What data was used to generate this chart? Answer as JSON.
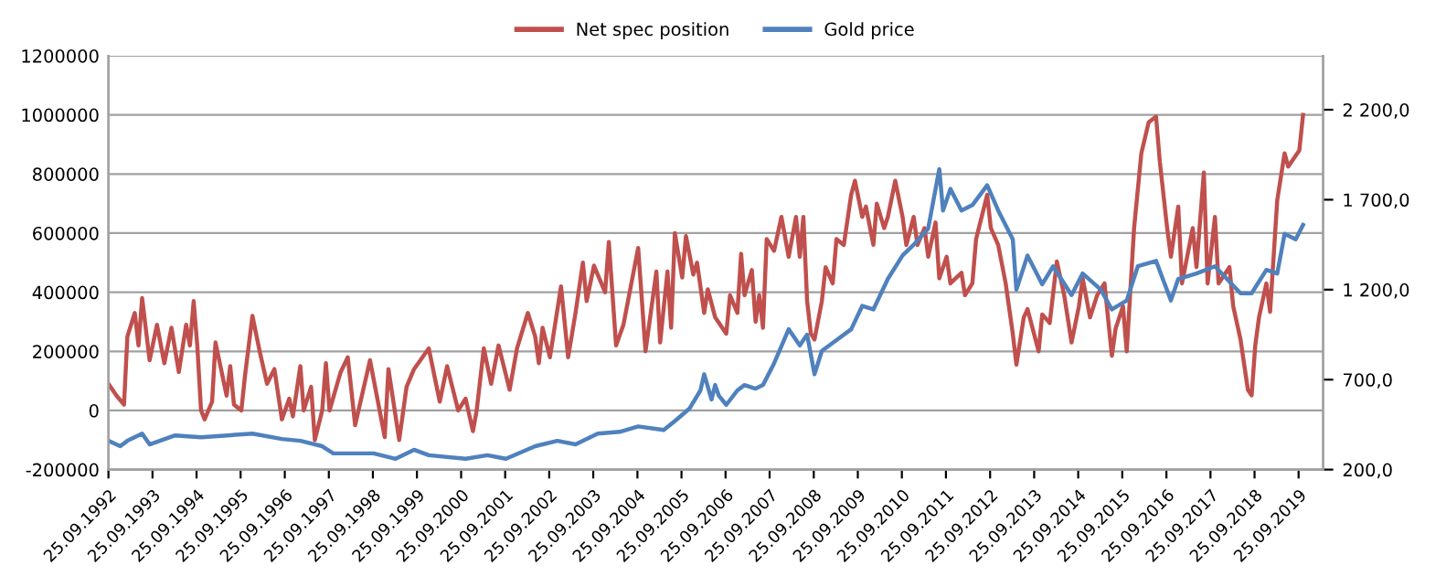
{
  "chart_data": {
    "type": "line",
    "xlim": [
      "1992-09-25",
      "2020-04-15"
    ],
    "xticks": [
      {
        "value": "1992-09-25",
        "label": "25.09.1992"
      },
      {
        "value": "1993-09-25",
        "label": "25.09.1993"
      },
      {
        "value": "1994-09-25",
        "label": "25.09.1994"
      },
      {
        "value": "1995-09-25",
        "label": "25.09.1995"
      },
      {
        "value": "1996-09-25",
        "label": "25.09.1996"
      },
      {
        "value": "1997-09-25",
        "label": "25.09.1997"
      },
      {
        "value": "1998-09-25",
        "label": "25.09.1998"
      },
      {
        "value": "1999-09-25",
        "label": "25.09.1999"
      },
      {
        "value": "2000-09-25",
        "label": "25.09.2000"
      },
      {
        "value": "2001-09-25",
        "label": "25.09.2001"
      },
      {
        "value": "2002-09-25",
        "label": "25.09.2002"
      },
      {
        "value": "2003-09-25",
        "label": "25.09.2003"
      },
      {
        "value": "2004-09-25",
        "label": "25.09.2004"
      },
      {
        "value": "2005-09-25",
        "label": "25.09.2005"
      },
      {
        "value": "2006-09-25",
        "label": "25.09.2006"
      },
      {
        "value": "2007-09-25",
        "label": "25.09.2007"
      },
      {
        "value": "2008-09-25",
        "label": "25.09.2008"
      },
      {
        "value": "2009-09-25",
        "label": "25.09.2009"
      },
      {
        "value": "2010-09-25",
        "label": "25.09.2010"
      },
      {
        "value": "2011-09-25",
        "label": "25.09.2011"
      },
      {
        "value": "2012-09-25",
        "label": "25.09.2012"
      },
      {
        "value": "2013-09-25",
        "label": "25.09.2013"
      },
      {
        "value": "2014-09-25",
        "label": "25.09.2014"
      },
      {
        "value": "2015-09-25",
        "label": "25.09.2015"
      },
      {
        "value": "2016-09-25",
        "label": "25.09.2016"
      },
      {
        "value": "2017-09-25",
        "label": "25.09.2017"
      },
      {
        "value": "2018-09-25",
        "label": "25.09.2018"
      },
      {
        "value": "2019-09-25",
        "label": "25.09.2019"
      }
    ],
    "ylim": [
      -200000,
      1200000
    ],
    "yticks": [
      -200000,
      0,
      200000,
      400000,
      600000,
      800000,
      1000000,
      1200000
    ],
    "y2lim": [
      200,
      2500
    ],
    "y2ticks": [
      {
        "value": 200,
        "label": "200,0"
      },
      {
        "value": 700,
        "label": "700,0"
      },
      {
        "value": 1200,
        "label": "1 200,0"
      },
      {
        "value": 1700,
        "label": "1 700,0"
      },
      {
        "value": 2200,
        "label": "2 200,0"
      }
    ],
    "grid": "y",
    "legend": "top",
    "marker": "none",
    "line_style": "solid",
    "series": [
      {
        "name": "Net spec position",
        "color": "#c0504d",
        "x": [
          "1992-09-25",
          "1992-12",
          "1993-02",
          "1993-03",
          "1993-05",
          "1993-06",
          "1993-07",
          "1993-09",
          "1993-11",
          "1994-01",
          "1994-03",
          "1994-05",
          "1994-07",
          "1994-08",
          "1994-09",
          "1994-10",
          "1994-11",
          "1994-12",
          "1995-02",
          "1995-03",
          "1995-06",
          "1995-07",
          "1995-08",
          "1995-10",
          "1995-11",
          "1996-01",
          "1996-03",
          "1996-05",
          "1996-07",
          "1996-09",
          "1996-11",
          "1996-12",
          "1997-02",
          "1997-03",
          "1997-05",
          "1997-06",
          "1997-08",
          "1997-09",
          "1997-10",
          "1998-01",
          "1998-03",
          "1998-05",
          "1998-09",
          "1999-01",
          "1999-02",
          "1999-05",
          "1999-07",
          "1999-09",
          "2000-01",
          "2000-04",
          "2000-06",
          "2000-09",
          "2000-11",
          "2001-01",
          "2001-02",
          "2001-04",
          "2001-06",
          "2001-08",
          "2001-11",
          "2002-01",
          "2002-04",
          "2002-06",
          "2002-07",
          "2002-08",
          "2002-10",
          "2003-01",
          "2003-03",
          "2003-05",
          "2003-07",
          "2003-08",
          "2003-10",
          "2004-01",
          "2004-02",
          "2004-04",
          "2004-06",
          "2004-10",
          "2004-12",
          "2005-03",
          "2005-04",
          "2005-06",
          "2005-07",
          "2005-08",
          "2005-10",
          "2005-11",
          "2006-01",
          "2006-02",
          "2006-04",
          "2006-05",
          "2006-07",
          "2006-10",
          "2006-11",
          "2007-01",
          "2007-02",
          "2007-03",
          "2007-05",
          "2007-06",
          "2007-07",
          "2007-08",
          "2007-09",
          "2007-11",
          "2008-01",
          "2008-03",
          "2008-05",
          "2008-06",
          "2008-07",
          "2008-08",
          "2008-09",
          "2008-10",
          "2008-12",
          "2009-01",
          "2009-03",
          "2009-04",
          "2009-06",
          "2009-08",
          "2009-09",
          "2009-11",
          "2009-12",
          "2010-02",
          "2010-03",
          "2010-05",
          "2010-06",
          "2010-08",
          "2010-10",
          "2010-11",
          "2011-01",
          "2011-02",
          "2011-04",
          "2011-05",
          "2011-07",
          "2011-08",
          "2011-10",
          "2011-11",
          "2012-02",
          "2012-03",
          "2012-05",
          "2012-06",
          "2012-09",
          "2012-10",
          "2012-12",
          "2013-02",
          "2013-04",
          "2013-05",
          "2013-07",
          "2013-08",
          "2013-11",
          "2013-12",
          "2014-02",
          "2014-04",
          "2014-06",
          "2014-08",
          "2014-10",
          "2014-11",
          "2015-01",
          "2015-03",
          "2015-05",
          "2015-07",
          "2015-08",
          "2015-10",
          "2015-11",
          "2016-01",
          "2016-03",
          "2016-05",
          "2016-07",
          "2016-08",
          "2016-10",
          "2016-11",
          "2017-01",
          "2017-02",
          "2017-05",
          "2017-06",
          "2017-08",
          "2017-09",
          "2017-11",
          "2017-12",
          "2018-03",
          "2018-04",
          "2018-06",
          "2018-08",
          "2018-09",
          "2018-10",
          "2018-11",
          "2019-01",
          "2019-02",
          "2019-04",
          "2019-06",
          "2019-07",
          "2019-09",
          "2019-10",
          "2019-11"
        ],
        "values": [
          90000,
          50000,
          20000,
          250000,
          330000,
          220000,
          380000,
          170000,
          290000,
          160000,
          280000,
          130000,
          290000,
          220000,
          370000,
          220000,
          0,
          -30000,
          30000,
          230000,
          50000,
          150000,
          20000,
          0,
          120000,
          320000,
          200000,
          90000,
          140000,
          -30000,
          40000,
          -20000,
          150000,
          0,
          80000,
          -100000,
          0,
          160000,
          0,
          130000,
          180000,
          -50000,
          170000,
          -90000,
          140000,
          -100000,
          80000,
          140000,
          210000,
          30000,
          150000,
          0,
          40000,
          -70000,
          0,
          210000,
          90000,
          220000,
          70000,
          210000,
          330000,
          250000,
          160000,
          280000,
          180000,
          420000,
          180000,
          330000,
          500000,
          370000,
          490000,
          400000,
          570000,
          220000,
          290000,
          550000,
          200000,
          470000,
          230000,
          470000,
          280000,
          600000,
          450000,
          590000,
          460000,
          500000,
          330000,
          410000,
          315000,
          260000,
          390000,
          330000,
          530000,
          390000,
          475000,
          300000,
          390000,
          280000,
          580000,
          540000,
          655000,
          520000,
          655000,
          520000,
          655000,
          370000,
          260000,
          240000,
          370000,
          485000,
          430000,
          580000,
          560000,
          730000,
          777000,
          655000,
          690000,
          560000,
          700000,
          617000,
          655000,
          777000,
          655000,
          560000,
          655000,
          560000,
          617000,
          520000,
          636000,
          447000,
          520000,
          430000,
          466000,
          390000,
          430000,
          580000,
          730000,
          617000,
          560000,
          430000,
          260000,
          155000,
          315000,
          343000,
          200000,
          325000,
          296000,
          504000,
          390000,
          230000,
          353000,
          447000,
          315000,
          390000,
          430000,
          185000,
          277000,
          353000,
          200000,
          617000,
          870000,
          975000,
          994000,
          843000,
          617000,
          520000,
          690000,
          430000,
          617000,
          485000,
          805000,
          430000,
          655000,
          430000,
          485000,
          353000,
          240000,
          70000,
          51000,
          220000,
          315000,
          430000,
          334000,
          711000,
          870000,
          825000,
          862000,
          880000,
          1000000
        ]
      },
      {
        "name": "Gold price",
        "color": "#4f81bd",
        "axis": "y2",
        "x": [
          "1992-09-25",
          "1993-01",
          "1993-03",
          "1993-07",
          "1993-09",
          "1994-04",
          "1994-11",
          "1996-01",
          "1996-09",
          "1997-02",
          "1997-08",
          "1997-11",
          "1998-10",
          "1999-04",
          "1999-09",
          "2000-01",
          "2000-11",
          "2001-05",
          "2001-10",
          "2002-06",
          "2002-12",
          "2003-05",
          "2003-11",
          "2004-05",
          "2004-10",
          "2005-05",
          "2005-08",
          "2005-12",
          "2006-03",
          "2006-04",
          "2006-06",
          "2006-07",
          "2006-08",
          "2006-10",
          "2007-01",
          "2007-03",
          "2007-06",
          "2007-08",
          "2007-11",
          "2008-03",
          "2008-06",
          "2008-08",
          "2008-10",
          "2008-12",
          "2009-04",
          "2009-08",
          "2009-11",
          "2010-02",
          "2010-06",
          "2010-10",
          "2011-01",
          "2011-05",
          "2011-08",
          "2011-09",
          "2011-11",
          "2012-02",
          "2012-05",
          "2012-09",
          "2012-12",
          "2013-04",
          "2013-05",
          "2013-08",
          "2013-12",
          "2014-03",
          "2014-08",
          "2014-11",
          "2015-04",
          "2015-07",
          "2015-11",
          "2016-02",
          "2016-07",
          "2016-11",
          "2017-01",
          "2017-06",
          "2017-11",
          "2018-06",
          "2018-09",
          "2019-01",
          "2019-04",
          "2019-06",
          "2019-09",
          "2019-11"
        ],
        "values": [
          360,
          330,
          360,
          400,
          340,
          390,
          380,
          400,
          370,
          360,
          330,
          290,
          290,
          260,
          310,
          280,
          260,
          280,
          260,
          330,
          360,
          340,
          400,
          410,
          440,
          420,
          470,
          540,
          640,
          730,
          590,
          670,
          610,
          560,
          640,
          670,
          650,
          670,
          790,
          980,
          890,
          950,
          730,
          860,
          920,
          980,
          1110,
          1090,
          1260,
          1390,
          1450,
          1540,
          1870,
          1640,
          1760,
          1640,
          1670,
          1780,
          1640,
          1480,
          1200,
          1390,
          1230,
          1330,
          1170,
          1290,
          1200,
          1090,
          1140,
          1330,
          1360,
          1140,
          1260,
          1290,
          1330,
          1180,
          1180,
          1310,
          1290,
          1510,
          1480,
          1560
        ]
      }
    ]
  }
}
